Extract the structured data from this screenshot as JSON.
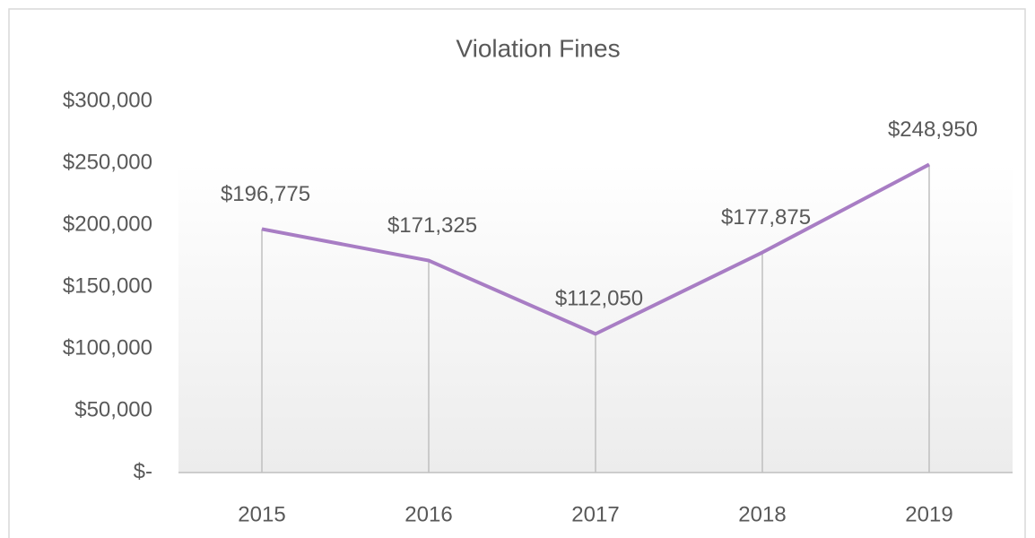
{
  "chart_data": {
    "type": "line",
    "title": "Violation Fines",
    "categories": [
      "2015",
      "2016",
      "2017",
      "2018",
      "2019"
    ],
    "values": [
      196775,
      171325,
      112050,
      177875,
      248950
    ],
    "value_labels": [
      "$196,775",
      "$171,325",
      "$112,050",
      "$177,875",
      "$248,950"
    ],
    "color": "#a87dc4",
    "ylim": [
      0,
      300000
    ],
    "yticks": [
      {
        "value": 0,
        "label": "$-"
      },
      {
        "value": 50000,
        "label": "$50,000"
      },
      {
        "value": 100000,
        "label": "$100,000"
      },
      {
        "value": 150000,
        "label": "$150,000"
      },
      {
        "value": 200000,
        "label": "$200,000"
      },
      {
        "value": 250000,
        "label": "$250,000"
      },
      {
        "value": 300000,
        "label": "$300,000"
      }
    ],
    "drop_lines": true,
    "grid": false
  }
}
